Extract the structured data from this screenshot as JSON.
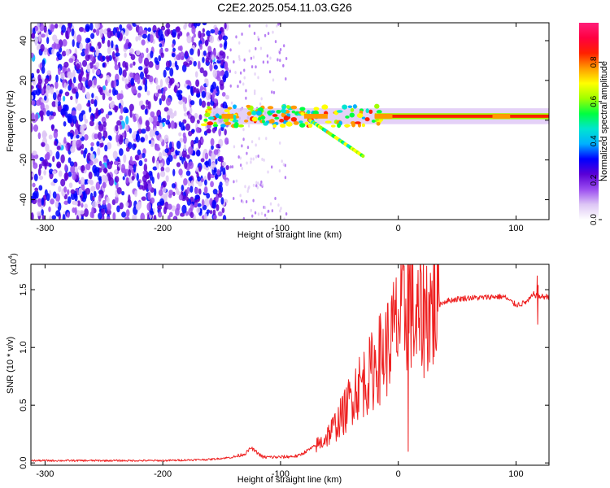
{
  "figure_title": "C2E2.2025.054.11.03.G26",
  "chart_data": [
    {
      "type": "heatmap",
      "xlabel": "Height of straight line (km)",
      "ylabel": "Frequency (Hz)",
      "xlim": [
        -312,
        128
      ],
      "ylim": [
        -50,
        49
      ],
      "xticks": [
        -300,
        -200,
        -100,
        0,
        100
      ],
      "yticks": [
        -40,
        -20,
        0,
        20,
        40
      ],
      "colorbar": {
        "label": "Normalized spectral amplitude",
        "range": [
          0,
          1
        ],
        "ticks": [
          "0.0",
          "0.2",
          "0.4",
          "0.6",
          "0.8"
        ],
        "colormap": [
          "#ffffff",
          "#ddc6f5",
          "#9b4df0",
          "#5a00d6",
          "#0000ff",
          "#00b0ff",
          "#00e5d0",
          "#00ff40",
          "#a0ff00",
          "#ffff00",
          "#ff9a00",
          "#ff2000",
          "#ff0040",
          "#ff1f7a"
        ]
      },
      "regions": {
        "noise_band": {
          "x": [
            -312,
            -145
          ],
          "f": [
            -50,
            49
          ],
          "amplitude": 0.25
        },
        "sparse_noise": {
          "x": [
            -145,
            -95
          ],
          "f": [
            -50,
            49
          ],
          "amplitude": 0.12
        },
        "signal_line": {
          "x": [
            -160,
            128
          ],
          "frequency_hz": 2,
          "amplitude": 0.95
        },
        "descending_branch": {
          "x": [
            -75,
            -30
          ],
          "f": [
            0,
            -18
          ]
        }
      }
    },
    {
      "type": "line",
      "xlabel": "Height of straight line (km)",
      "ylabel": "SNR (10 * v/v)",
      "multiplier": "(x10",
      "multiplier_exp": "4",
      "multiplier_close": ")",
      "xlim": [
        -312,
        128
      ],
      "ylim": [
        -0.02,
        1.72
      ],
      "xticks": [
        -300,
        -200,
        -100,
        0,
        100
      ],
      "yticks": [
        "0.0",
        "0.5",
        "1.0",
        "1.5"
      ],
      "series": [
        {
          "color": "#ee2020",
          "x": [
            -312,
            -250,
            -200,
            -160,
            -140,
            -130,
            -125,
            -115,
            -100,
            -85,
            -75,
            -65,
            -55,
            -45,
            -38,
            -30,
            -25,
            -18,
            -12,
            -5,
            0,
            5,
            10,
            15,
            20,
            30,
            40,
            50,
            60,
            70,
            80,
            90,
            95,
            100,
            105,
            110,
            115,
            120,
            128
          ],
          "y": [
            0.02,
            0.02,
            0.02,
            0.03,
            0.05,
            0.08,
            0.13,
            0.05,
            0.05,
            0.06,
            0.12,
            0.18,
            0.3,
            0.45,
            0.62,
            0.7,
            0.75,
            0.88,
            0.95,
            1.1,
            1.22,
            1.28,
            1.45,
            1.15,
            1.3,
            1.35,
            1.4,
            1.42,
            1.43,
            1.43,
            1.44,
            1.44,
            1.4,
            1.37,
            1.38,
            1.4,
            1.46,
            1.44,
            1.44
          ]
        }
      ],
      "spikes": [
        {
          "x": 8,
          "y_min": 0.1,
          "y_max": 1.72
        },
        {
          "x": 118,
          "y_min": 1.2,
          "y_max": 1.62
        }
      ]
    }
  ]
}
